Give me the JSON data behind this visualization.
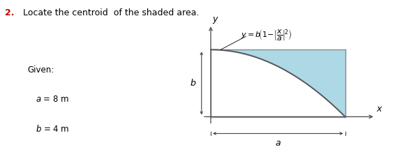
{
  "title_num": "2.",
  "title_rest": "  Locate the centroid  of the shaded area.",
  "title_color": "#c00000",
  "given_label": "Given:",
  "a_label": "a = 8 m",
  "b_label": "b = 4 m",
  "a_val": 8,
  "b_val": 4,
  "shaded_color": "#add8e6",
  "curve_color": "#555555",
  "axis_color": "#555555",
  "box_color": "#888888",
  "dim_color": "#444444",
  "fig_width": 5.66,
  "fig_height": 2.34,
  "bg_color": "#ffffff"
}
